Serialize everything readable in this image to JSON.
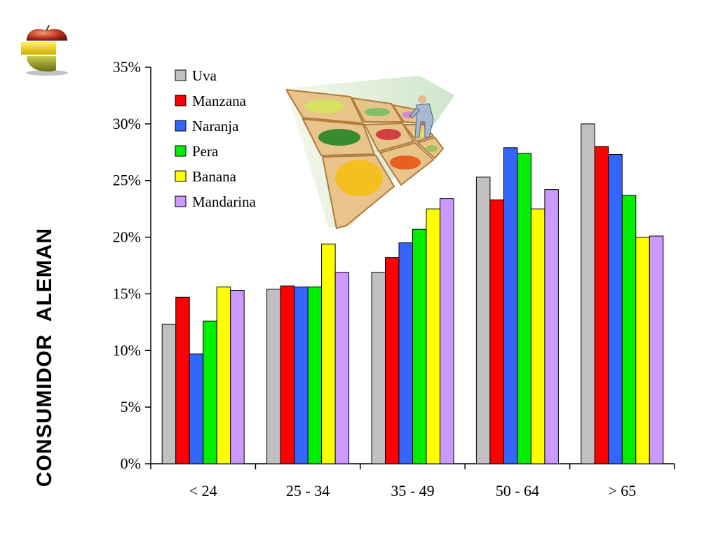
{
  "page": {
    "vertical_title": "CONSUMIDOR  ALEMAN"
  },
  "icons": {
    "logo": "fruit-logo-icon",
    "illustration": "fruit-market-illustration"
  },
  "chart_data": {
    "type": "bar",
    "title": "",
    "xlabel": "",
    "ylabel": "",
    "categories": [
      "< 24",
      "25 - 34",
      "35 - 49",
      "50 - 64",
      "> 65"
    ],
    "ylim": [
      0,
      35
    ],
    "yticks": [
      0,
      5,
      10,
      15,
      20,
      25,
      30,
      35
    ],
    "ytick_labels": [
      "0%",
      "5%",
      "10%",
      "15%",
      "20%",
      "25%",
      "30%",
      "35%"
    ],
    "unit": "%",
    "grid": false,
    "legend": "top-left",
    "series": [
      {
        "name": "Uva",
        "color": "#c0c0c0",
        "values": [
          12.3,
          15.4,
          16.9,
          25.3,
          30.0
        ]
      },
      {
        "name": "Manzana",
        "color": "#ff0000",
        "values": [
          14.7,
          15.7,
          18.2,
          23.3,
          28.0
        ]
      },
      {
        "name": "Naranja",
        "color": "#3366ff",
        "values": [
          9.7,
          15.6,
          19.5,
          27.9,
          27.3
        ]
      },
      {
        "name": "Pera",
        "color": "#00ee00",
        "values": [
          12.6,
          15.6,
          20.7,
          27.4,
          23.7
        ]
      },
      {
        "name": "Banana",
        "color": "#ffff00",
        "values": [
          15.6,
          19.4,
          22.5,
          22.5,
          20.0
        ]
      },
      {
        "name": "Mandarina",
        "color": "#cc99ff",
        "values": [
          15.3,
          16.9,
          23.4,
          24.2,
          20.1
        ]
      }
    ]
  }
}
